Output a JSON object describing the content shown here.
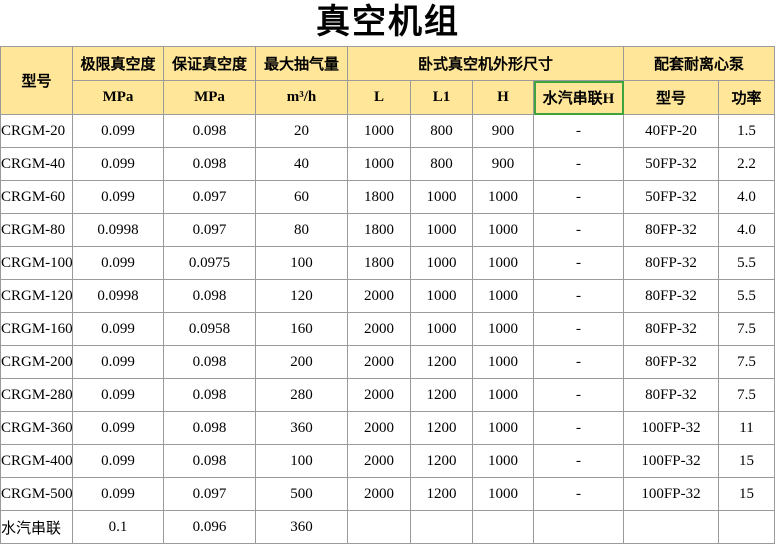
{
  "header": {
    "title": "真空机组"
  },
  "table": {
    "header_row1": [
      "型号",
      "极限真空度",
      "保证真空度",
      "最大抽气量",
      "卧式真空机外形尺寸",
      "配套耐离心泵"
    ],
    "header_row2": [
      "MPa",
      "MPa",
      "m³/h",
      "L",
      "L1",
      "H",
      "水汽串联H",
      "型号",
      "功率"
    ],
    "rows": [
      [
        "CRGM-20",
        "0.099",
        "0.098",
        "20",
        "1000",
        "800",
        "900",
        "-",
        "40FP-20",
        "1.5"
      ],
      [
        "CRGM-40",
        "0.099",
        "0.098",
        "40",
        "1000",
        "800",
        "900",
        "-",
        "50FP-32",
        "2.2"
      ],
      [
        "CRGM-60",
        "0.099",
        "0.097",
        "60",
        "1800",
        "1000",
        "1000",
        "-",
        "50FP-32",
        "4.0"
      ],
      [
        "CRGM-80",
        "0.0998",
        "0.097",
        "80",
        "1800",
        "1000",
        "1000",
        "-",
        "80FP-32",
        "4.0"
      ],
      [
        "CRGM-100",
        "0.099",
        "0.0975",
        "100",
        "1800",
        "1000",
        "1000",
        "-",
        "80FP-32",
        "5.5"
      ],
      [
        "CRGM-120",
        "0.0998",
        "0.098",
        "120",
        "2000",
        "1000",
        "1000",
        "-",
        "80FP-32",
        "5.5"
      ],
      [
        "CRGM-160",
        "0.099",
        "0.0958",
        "160",
        "2000",
        "1000",
        "1000",
        "-",
        "80FP-32",
        "7.5"
      ],
      [
        "CRGM-200",
        "0.099",
        "0.098",
        "200",
        "2000",
        "1200",
        "1000",
        "-",
        "80FP-32",
        "7.5"
      ],
      [
        "CRGM-280",
        "0.099",
        "0.098",
        "280",
        "2000",
        "1200",
        "1000",
        "-",
        "80FP-32",
        "7.5"
      ],
      [
        "CRGM-360",
        "0.099",
        "0.098",
        "360",
        "2000",
        "1200",
        "1000",
        "-",
        "100FP-32",
        "11"
      ],
      [
        "CRGM-400",
        "0.099",
        "0.098",
        "100",
        "2000",
        "1200",
        "1000",
        "-",
        "100FP-32",
        "15"
      ],
      [
        "CRGM-500",
        "0.099",
        "0.097",
        "500",
        "2000",
        "1200",
        "1000",
        "-",
        "100FP-32",
        "15"
      ],
      [
        "水汽串联",
        "0.1",
        "0.096",
        "360"
      ]
    ]
  }
}
